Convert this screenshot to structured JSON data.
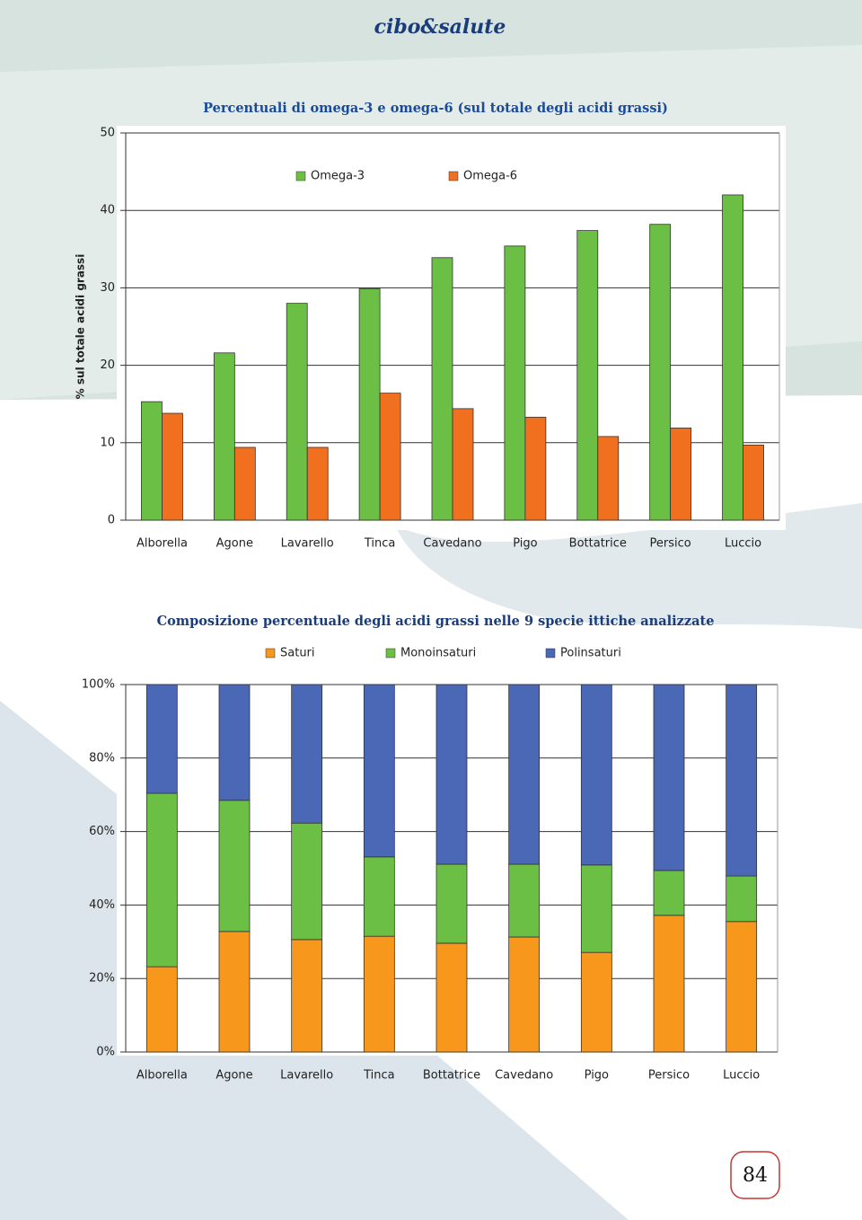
{
  "header": "cibo&salute",
  "page_number": "84",
  "chart_data": [
    {
      "type": "bar",
      "title": "Percentuali di omega-3 e omega-6 (sul totale degli acidi grassi)",
      "y_label": "% sul totale acidi grassi",
      "categories": [
        "Alborella",
        "Agone",
        "Lavarello",
        "Tinca",
        "Cavedano",
        "Pigo",
        "Bottatrice",
        "Persico",
        "Luccio"
      ],
      "series": [
        {
          "name": "Omega-3",
          "color": "#6cbf45",
          "values": [
            15.3,
            21.6,
            28.0,
            29.9,
            33.9,
            35.4,
            37.4,
            38.2,
            42.0
          ]
        },
        {
          "name": "Omega-6",
          "color": "#f07020",
          "values": [
            13.8,
            9.4,
            9.4,
            16.4,
            14.4,
            13.3,
            10.8,
            11.9,
            9.7
          ]
        }
      ],
      "ylim": [
        0,
        50
      ],
      "yticks": [
        0,
        10,
        20,
        30,
        40,
        50
      ],
      "grid": true
    },
    {
      "type": "stacked_bar",
      "title": "Composizione percentuale degli acidi grassi nelle 9 specie ittiche analizzate",
      "categories": [
        "Alborella",
        "Agone",
        "Lavarello",
        "Tinca",
        "Bottatrice",
        "Cavedano",
        "Pigo",
        "Persico",
        "Luccio"
      ],
      "series": [
        {
          "name": "Saturi",
          "color": "#f7981d",
          "values": [
            23.2,
            32.8,
            30.6,
            31.5,
            29.6,
            31.3,
            27.1,
            37.2,
            35.5
          ]
        },
        {
          "name": "Monoinsaturi",
          "color": "#6cbf45",
          "values": [
            47.2,
            35.7,
            31.7,
            21.6,
            21.5,
            19.8,
            23.8,
            12.2,
            12.4
          ]
        },
        {
          "name": "Polinsaturi",
          "color": "#4a68b5",
          "values": [
            29.6,
            31.5,
            37.7,
            46.9,
            48.9,
            48.9,
            49.1,
            50.6,
            52.1
          ]
        }
      ],
      "ylim": [
        0,
        100
      ],
      "yticks": [
        {
          "value": 0,
          "label": "0%"
        },
        {
          "value": 20,
          "label": "20%"
        },
        {
          "value": 40,
          "label": "40%"
        },
        {
          "value": 60,
          "label": "60%"
        },
        {
          "value": 80,
          "label": "80%"
        },
        {
          "value": 100,
          "label": "100%"
        }
      ],
      "grid": true
    }
  ]
}
